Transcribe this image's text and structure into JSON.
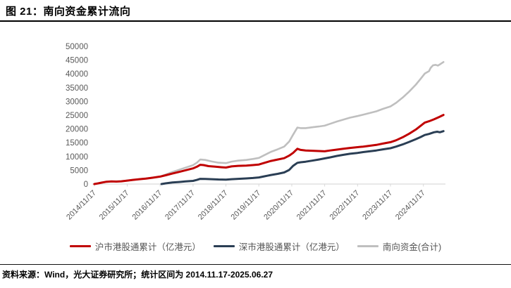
{
  "figure": {
    "title": "图 21：南向资金累计流向",
    "source_note": "资料来源：Wind，光大证券研究所；统计区间为 2014.11.17-2025.06.27"
  },
  "colors": {
    "sh": "#c00000",
    "sz": "#2a3e54",
    "total": "#bfbfbf",
    "axis_line": "#d9d9d9",
    "tick_label": "#595959",
    "legend_label": "#555555",
    "title_rule": "#000000"
  },
  "chart_data": {
    "type": "line",
    "title": "",
    "xlabel": "",
    "ylabel": "",
    "unit": "亿港元",
    "grid": false,
    "legend_position": "bottom",
    "ylim": [
      0,
      50000
    ],
    "y_ticks": [
      0,
      5000,
      10000,
      15000,
      20000,
      25000,
      30000,
      35000,
      40000,
      45000,
      50000
    ],
    "xlim": [
      2014.82,
      2025.55
    ],
    "x_ticks": [
      {
        "pos": 2014.88,
        "label": "2014/11/17"
      },
      {
        "pos": 2015.88,
        "label": "2015/11/17"
      },
      {
        "pos": 2016.88,
        "label": "2016/11/17"
      },
      {
        "pos": 2017.88,
        "label": "2017/11/17"
      },
      {
        "pos": 2018.88,
        "label": "2018/11/17"
      },
      {
        "pos": 2019.88,
        "label": "2019/11/17"
      },
      {
        "pos": 2020.88,
        "label": "2020/11/17"
      },
      {
        "pos": 2021.88,
        "label": "2021/11/17"
      },
      {
        "pos": 2022.88,
        "label": "2022/11/17"
      },
      {
        "pos": 2023.88,
        "label": "2023/11/17"
      },
      {
        "pos": 2024.88,
        "label": "2024/11/17"
      }
    ],
    "series": [
      {
        "id": "sh",
        "name": "沪市港股通累计（亿港元）",
        "color_key": "sh",
        "stroke_width": 3,
        "points": [
          [
            2014.88,
            0
          ],
          [
            2015.0,
            250
          ],
          [
            2015.1,
            500
          ],
          [
            2015.25,
            850
          ],
          [
            2015.4,
            950
          ],
          [
            2015.55,
            900
          ],
          [
            2015.7,
            1000
          ],
          [
            2015.88,
            1250
          ],
          [
            2016.05,
            1500
          ],
          [
            2016.25,
            1750
          ],
          [
            2016.45,
            2000
          ],
          [
            2016.65,
            2300
          ],
          [
            2016.88,
            2700
          ],
          [
            2017.05,
            3200
          ],
          [
            2017.25,
            3800
          ],
          [
            2017.45,
            4400
          ],
          [
            2017.65,
            5000
          ],
          [
            2017.88,
            5700
          ],
          [
            2018.0,
            6300
          ],
          [
            2018.1,
            7000
          ],
          [
            2018.2,
            6900
          ],
          [
            2018.35,
            6500
          ],
          [
            2018.55,
            6300
          ],
          [
            2018.75,
            6100
          ],
          [
            2018.88,
            6000
          ],
          [
            2019.05,
            6400
          ],
          [
            2019.25,
            6600
          ],
          [
            2019.5,
            6700
          ],
          [
            2019.7,
            6900
          ],
          [
            2019.88,
            7100
          ],
          [
            2020.05,
            7700
          ],
          [
            2020.25,
            8400
          ],
          [
            2020.45,
            8900
          ],
          [
            2020.65,
            9400
          ],
          [
            2020.8,
            10300
          ],
          [
            2020.92,
            11300
          ],
          [
            2021.05,
            12800
          ],
          [
            2021.15,
            12400
          ],
          [
            2021.3,
            12200
          ],
          [
            2021.5,
            12100
          ],
          [
            2021.7,
            12000
          ],
          [
            2021.88,
            11900
          ],
          [
            2022.05,
            12200
          ],
          [
            2022.25,
            12500
          ],
          [
            2022.45,
            12800
          ],
          [
            2022.65,
            13100
          ],
          [
            2022.88,
            13400
          ],
          [
            2023.05,
            13600
          ],
          [
            2023.25,
            13900
          ],
          [
            2023.45,
            14200
          ],
          [
            2023.65,
            14700
          ],
          [
            2023.88,
            15200
          ],
          [
            2024.05,
            15900
          ],
          [
            2024.25,
            17000
          ],
          [
            2024.45,
            18300
          ],
          [
            2024.65,
            19800
          ],
          [
            2024.8,
            21200
          ],
          [
            2024.92,
            22300
          ],
          [
            2025.05,
            22800
          ],
          [
            2025.2,
            23500
          ],
          [
            2025.35,
            24300
          ],
          [
            2025.49,
            25100
          ]
        ]
      },
      {
        "id": "sz",
        "name": "深市港股通累计（亿港元）",
        "color_key": "sz",
        "stroke_width": 3,
        "points": [
          [
            2016.92,
            0
          ],
          [
            2017.05,
            250
          ],
          [
            2017.25,
            550
          ],
          [
            2017.45,
            750
          ],
          [
            2017.65,
            950
          ],
          [
            2017.88,
            1150
          ],
          [
            2018.0,
            1500
          ],
          [
            2018.1,
            1900
          ],
          [
            2018.25,
            1850
          ],
          [
            2018.45,
            1750
          ],
          [
            2018.65,
            1650
          ],
          [
            2018.88,
            1600
          ],
          [
            2019.05,
            1750
          ],
          [
            2019.25,
            1900
          ],
          [
            2019.5,
            2050
          ],
          [
            2019.7,
            2200
          ],
          [
            2019.88,
            2400
          ],
          [
            2020.05,
            2800
          ],
          [
            2020.25,
            3300
          ],
          [
            2020.45,
            3700
          ],
          [
            2020.65,
            4200
          ],
          [
            2020.8,
            5100
          ],
          [
            2020.92,
            6600
          ],
          [
            2021.05,
            7700
          ],
          [
            2021.15,
            7900
          ],
          [
            2021.3,
            8100
          ],
          [
            2021.5,
            8500
          ],
          [
            2021.7,
            8900
          ],
          [
            2021.88,
            9300
          ],
          [
            2022.05,
            9700
          ],
          [
            2022.25,
            10200
          ],
          [
            2022.45,
            10600
          ],
          [
            2022.65,
            11000
          ],
          [
            2022.88,
            11300
          ],
          [
            2023.05,
            11600
          ],
          [
            2023.25,
            11900
          ],
          [
            2023.45,
            12200
          ],
          [
            2023.65,
            12600
          ],
          [
            2023.88,
            13000
          ],
          [
            2024.05,
            13600
          ],
          [
            2024.25,
            14400
          ],
          [
            2024.45,
            15300
          ],
          [
            2024.65,
            16300
          ],
          [
            2024.8,
            17100
          ],
          [
            2024.92,
            17800
          ],
          [
            2025.05,
            18200
          ],
          [
            2025.2,
            18800
          ],
          [
            2025.3,
            19000
          ],
          [
            2025.38,
            18800
          ],
          [
            2025.49,
            19200
          ]
        ]
      },
      {
        "id": "total",
        "name": "南向资金(合计)",
        "color_key": "total",
        "stroke_width": 2.6,
        "points": [
          [
            2014.88,
            0
          ],
          [
            2015.1,
            500
          ],
          [
            2015.25,
            850
          ],
          [
            2015.4,
            950
          ],
          [
            2015.7,
            1000
          ],
          [
            2015.88,
            1250
          ],
          [
            2016.25,
            1750
          ],
          [
            2016.65,
            2300
          ],
          [
            2016.88,
            2700
          ],
          [
            2017.05,
            3450
          ],
          [
            2017.25,
            4350
          ],
          [
            2017.45,
            5150
          ],
          [
            2017.65,
            5950
          ],
          [
            2017.88,
            6850
          ],
          [
            2018.0,
            7800
          ],
          [
            2018.1,
            8900
          ],
          [
            2018.25,
            8750
          ],
          [
            2018.45,
            8200
          ],
          [
            2018.65,
            7750
          ],
          [
            2018.88,
            7600
          ],
          [
            2019.05,
            8150
          ],
          [
            2019.25,
            8500
          ],
          [
            2019.5,
            8750
          ],
          [
            2019.7,
            9100
          ],
          [
            2019.88,
            9500
          ],
          [
            2020.05,
            10500
          ],
          [
            2020.25,
            11700
          ],
          [
            2020.45,
            12600
          ],
          [
            2020.65,
            13600
          ],
          [
            2020.8,
            15400
          ],
          [
            2020.92,
            17900
          ],
          [
            2021.05,
            20500
          ],
          [
            2021.15,
            20300
          ],
          [
            2021.3,
            20300
          ],
          [
            2021.5,
            20600
          ],
          [
            2021.7,
            20900
          ],
          [
            2021.88,
            21200
          ],
          [
            2022.05,
            21900
          ],
          [
            2022.25,
            22700
          ],
          [
            2022.45,
            23400
          ],
          [
            2022.65,
            24100
          ],
          [
            2022.88,
            24700
          ],
          [
            2023.05,
            25200
          ],
          [
            2023.25,
            25800
          ],
          [
            2023.45,
            26400
          ],
          [
            2023.65,
            27300
          ],
          [
            2023.88,
            28200
          ],
          [
            2024.05,
            29500
          ],
          [
            2024.25,
            31400
          ],
          [
            2024.45,
            33600
          ],
          [
            2024.65,
            36100
          ],
          [
            2024.8,
            38300
          ],
          [
            2024.92,
            40100
          ],
          [
            2025.05,
            41000
          ],
          [
            2025.1,
            42200
          ],
          [
            2025.17,
            43100
          ],
          [
            2025.25,
            43300
          ],
          [
            2025.32,
            43000
          ],
          [
            2025.4,
            43600
          ],
          [
            2025.49,
            44300
          ]
        ]
      }
    ]
  }
}
